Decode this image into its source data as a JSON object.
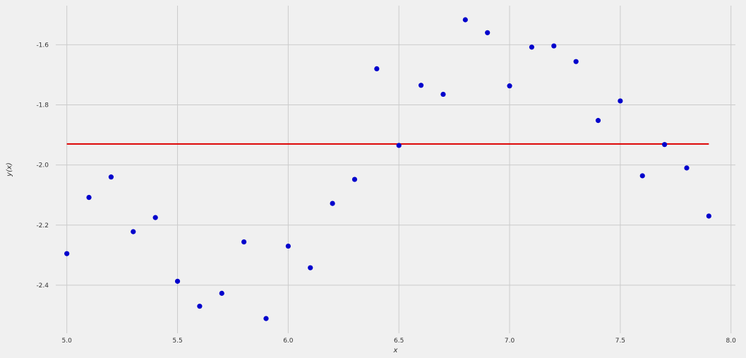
{
  "chart_data": {
    "type": "scatter",
    "xlabel": "x",
    "ylabel": "y(x)",
    "xlim": [
      4.95,
      8.02
    ],
    "ylim": [
      -2.56,
      -1.47
    ],
    "x_ticks": [
      "5.0",
      "5.5",
      "6.0",
      "6.5",
      "7.0",
      "7.5",
      "8.0"
    ],
    "y_ticks": [
      "-1.6",
      "-1.8",
      "-2.0",
      "-2.2",
      "-2.4"
    ],
    "grid": true,
    "series": [
      {
        "kind": "scatter",
        "color": "#0000cc",
        "x": [
          5.0,
          5.1,
          5.2,
          5.3,
          5.4,
          5.5,
          5.6,
          5.7,
          5.8,
          5.9,
          6.0,
          6.1,
          6.2,
          6.3,
          6.4,
          6.5,
          6.6,
          6.7,
          6.8,
          6.9,
          7.0,
          7.1,
          7.2,
          7.3,
          7.4,
          7.5,
          7.6,
          7.7,
          7.8,
          7.9
        ],
        "y": [
          -2.295,
          -2.108,
          -2.04,
          -2.222,
          -2.175,
          -2.387,
          -2.47,
          -2.427,
          -2.256,
          -2.511,
          -2.27,
          -2.342,
          -2.128,
          -2.048,
          -1.68,
          -1.935,
          -1.735,
          -1.765,
          -1.517,
          -1.56,
          -1.737,
          -1.608,
          -1.604,
          -1.656,
          -1.852,
          -1.787,
          -2.036,
          -1.932,
          -2.01,
          -2.17
        ]
      },
      {
        "kind": "line",
        "color": "#dd0000",
        "x": [
          5.0,
          7.9
        ],
        "y": [
          -1.93,
          -1.93
        ]
      }
    ]
  }
}
